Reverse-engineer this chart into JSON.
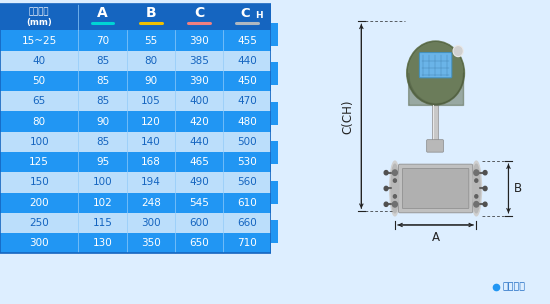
{
  "header_first": "仪表口径\n(mm)",
  "col_headers": [
    "A",
    "B",
    "C",
    "CH"
  ],
  "underline_colors": [
    "#00d4d4",
    "#f0c000",
    "#f08080",
    "#b0b8c0"
  ],
  "rows": [
    [
      "15~25",
      "70",
      "55",
      "390",
      "455"
    ],
    [
      "40",
      "85",
      "80",
      "385",
      "440"
    ],
    [
      "50",
      "85",
      "90",
      "390",
      "450"
    ],
    [
      "65",
      "85",
      "105",
      "400",
      "470"
    ],
    [
      "80",
      "90",
      "120",
      "420",
      "480"
    ],
    [
      "100",
      "85",
      "140",
      "440",
      "500"
    ],
    [
      "125",
      "95",
      "168",
      "465",
      "530"
    ],
    [
      "150",
      "100",
      "194",
      "490",
      "560"
    ],
    [
      "200",
      "102",
      "248",
      "545",
      "610"
    ],
    [
      "250",
      "115",
      "300",
      "600",
      "660"
    ],
    [
      "300",
      "130",
      "350",
      "650",
      "710"
    ]
  ],
  "row_dark_bg": "#2196F3",
  "row_light_bg": "#BBDEFB",
  "row_dark_text": "#ffffff",
  "row_light_text": "#1565c0",
  "header_bg": "#1565c0",
  "border_color": "#1565c0",
  "divider_color": "#90CAF9",
  "diagram_bg": "#ddeeff",
  "note_text": "常规仪表",
  "note_dot_color": "#2196F3",
  "dim_line_color": "#222222",
  "label_color": "#222222"
}
